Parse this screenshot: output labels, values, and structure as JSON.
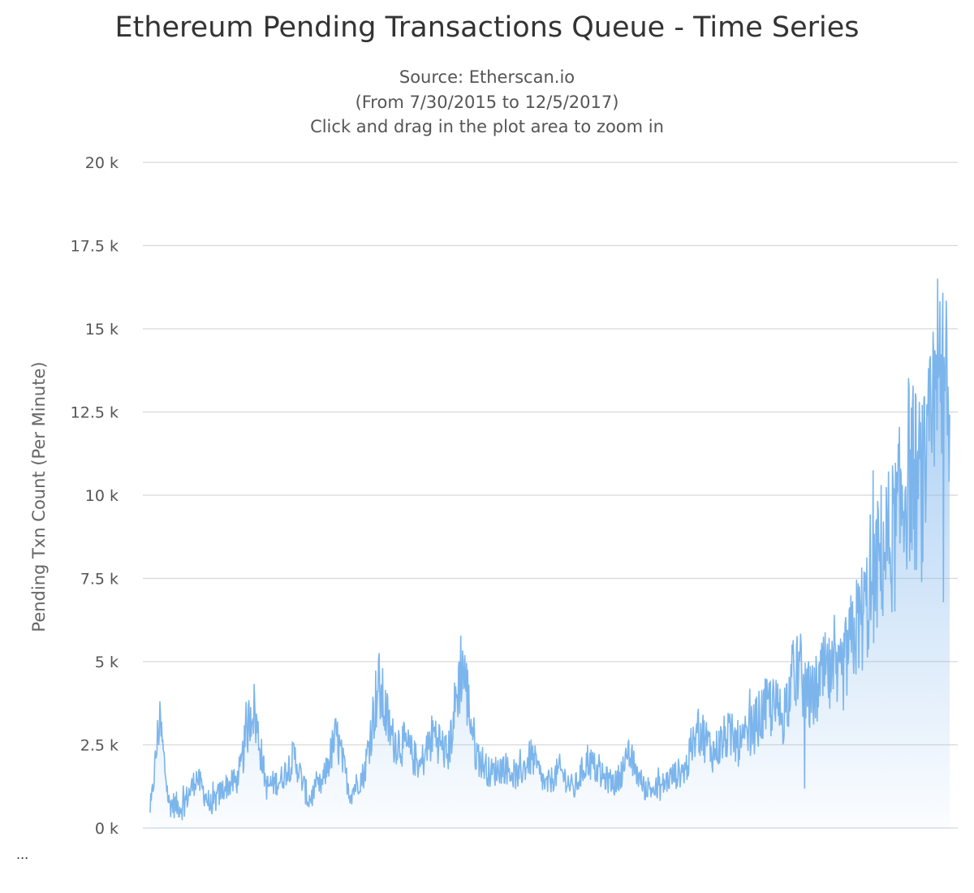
{
  "chart_data": {
    "type": "area",
    "title": "Ethereum Pending Transactions Queue - Time Series",
    "subtitle_lines": [
      "Source: Etherscan.io",
      "(From 7/30/2015 to 12/5/2017)",
      "Click and drag in the plot area to zoom in"
    ],
    "ylabel": "Pending Txn Count (Per Minute)",
    "xlabel": "",
    "ylim": [
      0,
      20000
    ],
    "yticks": [
      {
        "value": 0,
        "label": "0 k"
      },
      {
        "value": 2500,
        "label": "2.5 k"
      },
      {
        "value": 5000,
        "label": "5 k"
      },
      {
        "value": 7500,
        "label": "7.5 k"
      },
      {
        "value": 10000,
        "label": "10 k"
      },
      {
        "value": 12500,
        "label": "12.5 k"
      },
      {
        "value": 15000,
        "label": "15 k"
      },
      {
        "value": 17500,
        "label": "17.5 k"
      },
      {
        "value": 20000,
        "label": "20 k"
      }
    ],
    "x_start": "2015-07-30",
    "x_end": "2017-12-05",
    "grid": true,
    "legend": "none",
    "colors": {
      "line": "#7cb5ec",
      "fill_top": "#7cb5ec",
      "grid": "#d8d8d8",
      "axis": "#ccd6eb"
    },
    "series": [
      {
        "x": [
          "2015-07-30",
          "2015-08-09",
          "2015-08-19",
          "2015-09-03",
          "2015-09-18",
          "2015-10-03",
          "2015-10-18",
          "2015-11-02",
          "2015-11-17",
          "2015-12-02",
          "2015-12-17",
          "2016-01-01",
          "2016-01-16",
          "2016-01-31",
          "2016-02-15",
          "2016-03-01",
          "2016-03-16",
          "2016-03-31",
          "2016-04-15",
          "2016-04-30",
          "2016-05-15",
          "2016-05-30",
          "2016-06-14",
          "2016-06-29",
          "2016-07-14",
          "2016-07-29",
          "2016-08-13",
          "2016-08-28",
          "2016-09-12",
          "2016-09-27",
          "2016-10-12",
          "2016-10-27",
          "2016-11-11",
          "2016-11-26",
          "2016-12-11",
          "2016-12-26",
          "2017-01-10",
          "2017-01-25",
          "2017-02-09",
          "2017-02-24",
          "2017-03-11",
          "2017-03-26",
          "2017-04-10",
          "2017-04-25",
          "2017-05-10",
          "2017-05-25",
          "2017-06-09",
          "2017-06-24",
          "2017-07-09",
          "2017-07-24",
          "2017-08-08",
          "2017-08-23",
          "2017-09-07",
          "2017-09-22",
          "2017-10-07",
          "2017-10-22",
          "2017-11-06",
          "2017-11-21",
          "2017-12-05"
        ],
        "values": [
          300,
          3200,
          700,
          600,
          1500,
          600,
          1200,
          1400,
          3700,
          1200,
          1400,
          2100,
          800,
          1300,
          2700,
          1000,
          1600,
          4200,
          2600,
          2400,
          1800,
          2800,
          2100,
          4900,
          2200,
          1600,
          1800,
          1500,
          2100,
          1200,
          1700,
          1100,
          2000,
          1500,
          1300,
          2100,
          1200,
          1100,
          1500,
          1700,
          2900,
          2200,
          2700,
          2400,
          3000,
          3600,
          3300,
          4800,
          3700,
          4500,
          4200,
          5600,
          6500,
          8000,
          8600,
          10500,
          9800,
          12000,
          13800
        ]
      }
    ]
  }
}
